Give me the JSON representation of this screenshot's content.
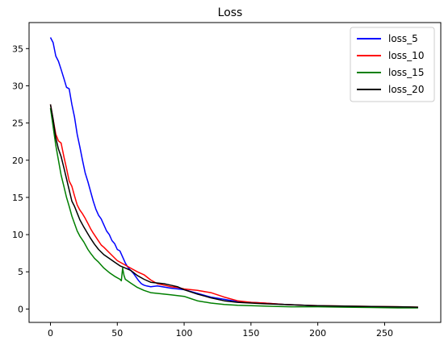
{
  "chart_data": {
    "type": "line",
    "title": "Loss",
    "xlabel": "",
    "ylabel": "",
    "xlim": [
      -16,
      292
    ],
    "ylim": [
      -1.8,
      38.5
    ],
    "xticks": [
      0,
      50,
      100,
      150,
      200,
      250
    ],
    "yticks": [
      0,
      5,
      10,
      15,
      20,
      25,
      30,
      35
    ],
    "grid": false,
    "legend_position": "top-right",
    "series": [
      {
        "name": "loss_5",
        "color": "#0000ff",
        "x": [
          0,
          2,
          4,
          6,
          8,
          10,
          12,
          14,
          16,
          18,
          20,
          22,
          24,
          26,
          28,
          30,
          32,
          34,
          36,
          38,
          40,
          42,
          44,
          46,
          48,
          50,
          52,
          54,
          56,
          58,
          60,
          62,
          64,
          66,
          68,
          70,
          72,
          75,
          80,
          90,
          100,
          110,
          120,
          130,
          140,
          150,
          160,
          175,
          190,
          200,
          220,
          240,
          260,
          275
        ],
        "y": [
          36.5,
          35.8,
          34.0,
          33.3,
          32.2,
          31.0,
          29.8,
          29.6,
          27.5,
          25.8,
          23.5,
          21.8,
          20.0,
          18.3,
          17.1,
          15.8,
          14.5,
          13.4,
          12.6,
          12.1,
          11.3,
          10.5,
          10.0,
          9.2,
          8.8,
          8.0,
          7.8,
          7.0,
          6.2,
          5.6,
          5.2,
          4.8,
          4.3,
          3.8,
          3.4,
          3.2,
          3.1,
          3.0,
          3.1,
          2.8,
          2.6,
          2.1,
          1.6,
          1.3,
          1.0,
          0.9,
          0.8,
          0.6,
          0.5,
          0.4,
          0.35,
          0.3,
          0.25,
          0.2
        ]
      },
      {
        "name": "loss_10",
        "color": "#ff0000",
        "x": [
          0,
          2,
          4,
          6,
          8,
          10,
          12,
          14,
          16,
          18,
          20,
          22,
          24,
          26,
          28,
          30,
          32,
          35,
          38,
          40,
          45,
          50,
          55,
          60,
          65,
          70,
          75,
          80,
          85,
          90,
          95,
          100,
          110,
          120,
          130,
          140,
          150,
          160,
          175,
          190,
          200,
          220,
          240,
          260,
          275
        ],
        "y": [
          27.5,
          25.5,
          23.5,
          22.6,
          22.3,
          20.5,
          18.9,
          17.2,
          16.5,
          15.2,
          14.0,
          13.3,
          12.8,
          12.2,
          11.5,
          10.8,
          10.2,
          9.4,
          8.6,
          8.3,
          7.4,
          6.5,
          6.0,
          5.5,
          5.0,
          4.6,
          3.9,
          3.4,
          3.2,
          3.0,
          2.9,
          2.7,
          2.5,
          2.2,
          1.6,
          1.1,
          0.9,
          0.8,
          0.6,
          0.5,
          0.45,
          0.4,
          0.35,
          0.3,
          0.25
        ]
      },
      {
        "name": "loss_15",
        "color": "#007f00",
        "x": [
          0,
          2,
          4,
          6,
          8,
          10,
          12,
          14,
          16,
          18,
          20,
          22,
          25,
          28,
          30,
          33,
          36,
          40,
          44,
          48,
          52,
          53,
          54,
          55,
          56,
          60,
          65,
          70,
          75,
          80,
          85,
          90,
          95,
          100,
          105,
          110,
          120,
          130,
          140,
          150,
          160,
          170,
          180,
          200,
          220,
          240,
          260,
          275
        ],
        "y": [
          27.0,
          24.5,
          22.0,
          20.0,
          18.0,
          16.5,
          15.0,
          13.8,
          12.5,
          11.5,
          10.5,
          9.8,
          9.0,
          8.0,
          7.5,
          6.8,
          6.3,
          5.5,
          4.9,
          4.4,
          4.0,
          3.8,
          5.5,
          4.5,
          4.0,
          3.5,
          2.9,
          2.5,
          2.2,
          2.1,
          2.0,
          1.9,
          1.8,
          1.7,
          1.4,
          1.1,
          0.8,
          0.6,
          0.5,
          0.45,
          0.4,
          0.35,
          0.3,
          0.3,
          0.25,
          0.2,
          0.15,
          0.15
        ]
      },
      {
        "name": "loss_20",
        "color": "#000000",
        "x": [
          0,
          2,
          4,
          6,
          8,
          10,
          12,
          14,
          16,
          18,
          20,
          22,
          25,
          28,
          30,
          33,
          36,
          40,
          44,
          48,
          52,
          56,
          60,
          65,
          70,
          75,
          80,
          85,
          90,
          95,
          100,
          110,
          120,
          130,
          140,
          150,
          160,
          175,
          190,
          200,
          220,
          240,
          260,
          275
        ],
        "y": [
          27.5,
          25.5,
          23.0,
          21.5,
          20.5,
          19.0,
          17.5,
          16.0,
          14.5,
          13.8,
          12.9,
          12.0,
          11.0,
          10.1,
          9.5,
          8.7,
          8.0,
          7.3,
          6.8,
          6.3,
          5.8,
          5.5,
          5.2,
          4.5,
          4.0,
          3.6,
          3.5,
          3.4,
          3.2,
          3.0,
          2.6,
          2.0,
          1.5,
          1.1,
          0.9,
          0.8,
          0.7,
          0.6,
          0.5,
          0.45,
          0.4,
          0.35,
          0.3,
          0.25
        ]
      }
    ]
  }
}
